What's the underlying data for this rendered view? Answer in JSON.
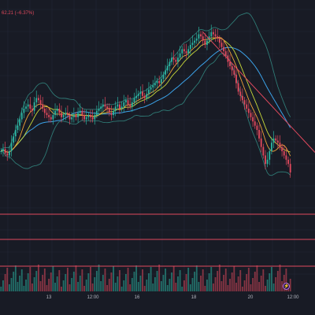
{
  "header": {
    "price_change": "62.21 (−6.37%)"
  },
  "x_axis": {
    "ticks": [
      "13",
      "12:00",
      "16",
      "18",
      "20",
      "12:00"
    ]
  },
  "event_marker": {
    "label": "⚡"
  },
  "colors": {
    "background": "#181b25",
    "grid": "#232737",
    "candle_up": "#2bb3a0",
    "candle_down": "#e0495d",
    "ma_fast": "#f0a23a",
    "ma_mid": "#c8d83a",
    "ma_slow": "#3ba2e8",
    "bollinger": "#2f7a75",
    "level_line": "#e0495d",
    "trendline": "#e0495d",
    "axis_text": "#b2b5be"
  },
  "chart_data": {
    "type": "candlestick",
    "series": [
      {
        "name": "price",
        "values": [
          40,
          41,
          39,
          38,
          40,
          44,
          47,
          50,
          52,
          55,
          58,
          60,
          61,
          62,
          60,
          59,
          63,
          65,
          64,
          62,
          60,
          58,
          57,
          56,
          55,
          57,
          59,
          60,
          58,
          56,
          57,
          58,
          57,
          55,
          56,
          57,
          56,
          58,
          59,
          57,
          55,
          56,
          57,
          56,
          55,
          57,
          59,
          60,
          61,
          62,
          61,
          60,
          58,
          57,
          59,
          61,
          62,
          60,
          61,
          63,
          64,
          62,
          61,
          63,
          65,
          66,
          67,
          68,
          66,
          65,
          67,
          69,
          70,
          71,
          72,
          73,
          72,
          74,
          76,
          78,
          80,
          82,
          84,
          83,
          82,
          84,
          86,
          88,
          87,
          86,
          88,
          90,
          91,
          92,
          93,
          95,
          94,
          92,
          90,
          92,
          94,
          96,
          95,
          94,
          93,
          91,
          89,
          87,
          85,
          82,
          80,
          78,
          76,
          72,
          68,
          66,
          64,
          62,
          60,
          58,
          56,
          54,
          52,
          50,
          46,
          42,
          38,
          34,
          36,
          40,
          44,
          46,
          45,
          44,
          42,
          40,
          38,
          36,
          34,
          30
        ]
      }
    ],
    "overlays": [
      "ma_fast",
      "ma_mid",
      "ma_slow",
      "bollinger_upper",
      "bollinger_lower"
    ],
    "horizontal_levels": [
      3,
      2,
      1
    ],
    "trendline": {
      "from_index": 97,
      "from_value": 96,
      "to_index": 139,
      "to_value": 45
    },
    "ylim": [
      0,
      100
    ]
  }
}
